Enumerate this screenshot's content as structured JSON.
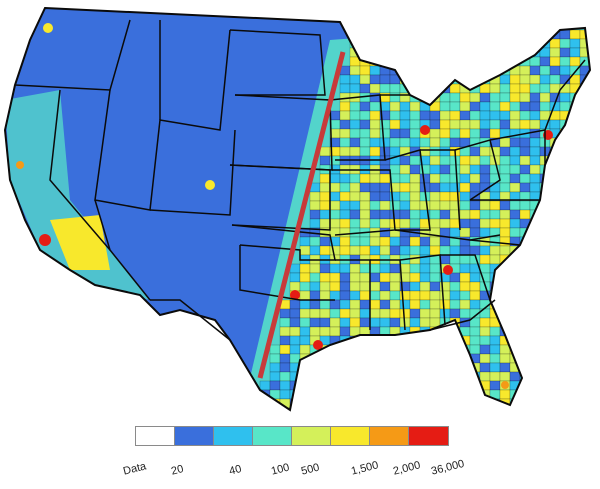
{
  "colors": {
    "no_data": "#ffffff",
    "level_1": "#3a6fdc",
    "level_2": "#2fc0ee",
    "level_3": "#58e6c8",
    "level_4": "#d4f05a",
    "level_5": "#f8e82c",
    "level_6": "#f59a16",
    "level_7": "#e51c14",
    "state_border": "#0b0b0b",
    "divider_line": "#c83a3a"
  },
  "legend": {
    "bins": [
      {
        "label": "Data",
        "color": "#ffffff"
      },
      {
        "label": "20",
        "color": "#3a6fdc"
      },
      {
        "label": "40",
        "color": "#2fc0ee"
      },
      {
        "label": "100",
        "color": "#58e6c8"
      },
      {
        "label": "500",
        "color": "#d4f05a"
      },
      {
        "label": "1,500",
        "color": "#f8e82c"
      },
      {
        "label": "2,000",
        "color": "#f59a16"
      },
      {
        "label": "36,000",
        "color": "#e51c14"
      }
    ]
  },
  "map": {
    "region": "contiguous-united-states",
    "divider": "diagonal-line-northwest-to-southeast",
    "hotspots": [
      {
        "name": "los-angeles",
        "level": 7
      },
      {
        "name": "bay-area",
        "level": 6
      },
      {
        "name": "seattle",
        "level": 5
      },
      {
        "name": "denver",
        "level": 5
      },
      {
        "name": "dallas",
        "level": 7
      },
      {
        "name": "houston",
        "level": 7
      },
      {
        "name": "chicago",
        "level": 7
      },
      {
        "name": "atlanta",
        "level": 7
      },
      {
        "name": "new-york",
        "level": 7
      },
      {
        "name": "miami",
        "level": 6
      }
    ]
  }
}
